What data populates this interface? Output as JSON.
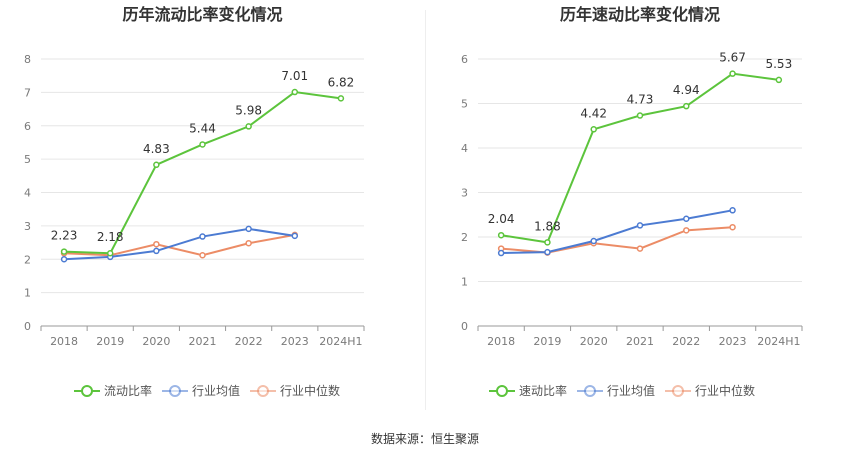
{
  "source_text": "数据来源：恒生聚源",
  "chart_data": [
    {
      "type": "line",
      "title": "历年流动比率变化情况",
      "categories": [
        "2018",
        "2019",
        "2020",
        "2021",
        "2022",
        "2023",
        "2024H1"
      ],
      "ylim": [
        0,
        8
      ],
      "yticks": [
        0,
        1,
        2,
        3,
        4,
        5,
        6,
        7,
        8
      ],
      "grid": true,
      "legend_position": "bottom",
      "series": [
        {
          "name": "流动比率",
          "color": "#5cc43c",
          "values": [
            2.23,
            2.18,
            4.83,
            5.44,
            5.98,
            7.01,
            6.82
          ],
          "labels": [
            "2.23",
            "2.18",
            "4.83",
            "5.44",
            "5.98",
            "7.01",
            "6.82"
          ]
        },
        {
          "name": "行业均值",
          "color": "#4c7bd2",
          "values": [
            2.0,
            2.07,
            2.25,
            2.68,
            2.91,
            2.7,
            null
          ]
        },
        {
          "name": "行业中位数",
          "color": "#ec8c66",
          "values": [
            2.18,
            2.12,
            2.45,
            2.12,
            2.48,
            2.73,
            null
          ]
        }
      ]
    },
    {
      "type": "line",
      "title": "历年速动比率变化情况",
      "categories": [
        "2018",
        "2019",
        "2020",
        "2021",
        "2022",
        "2023",
        "2024H1"
      ],
      "ylim": [
        0,
        6
      ],
      "yticks": [
        0,
        1,
        2,
        3,
        4,
        5,
        6
      ],
      "grid": true,
      "legend_position": "bottom",
      "series": [
        {
          "name": "速动比率",
          "color": "#5cc43c",
          "values": [
            2.04,
            1.88,
            4.42,
            4.73,
            4.94,
            5.67,
            5.53
          ],
          "labels": [
            "2.04",
            "1.88",
            "4.42",
            "4.73",
            "4.94",
            "5.67",
            "5.53"
          ]
        },
        {
          "name": "行业均值",
          "color": "#4c7bd2",
          "values": [
            1.64,
            1.66,
            1.91,
            2.26,
            2.41,
            2.6,
            null
          ]
        },
        {
          "name": "行业中位数",
          "color": "#ec8c66",
          "values": [
            1.74,
            1.65,
            1.86,
            1.74,
            2.15,
            2.22,
            null
          ]
        }
      ]
    }
  ]
}
